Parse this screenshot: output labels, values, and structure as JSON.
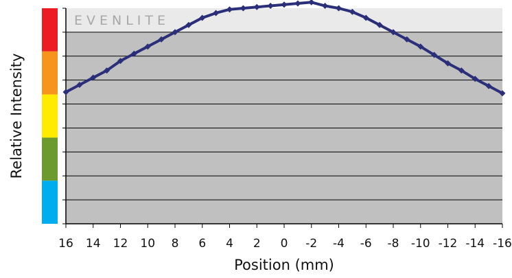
{
  "chart_data": {
    "type": "scatter",
    "title": "",
    "brand_label": "EVENLITE",
    "xlabel": "Position (mm)",
    "ylabel": "Relative Intensity",
    "x_tick_labels": [
      "16",
      "14",
      "12",
      "10",
      "8",
      "6",
      "4",
      "2",
      "0",
      "-2",
      "-4",
      "-6",
      "-8",
      "-10",
      "-12",
      "-14",
      "-16"
    ],
    "xlim": [
      16,
      -16
    ],
    "ylim": [
      0,
      9
    ],
    "y_gridlines": [
      1,
      2,
      3,
      4,
      5,
      6,
      7,
      8
    ],
    "grid": true,
    "legend": "none",
    "colors": {
      "plot_background": "#c0c0c0",
      "header_band": "#eaeaea",
      "series": "#2b2f7a",
      "gridline": "#000000",
      "scale_bar": [
        "#00aeef",
        "#6d9a2e",
        "#ffeb00",
        "#f7941d",
        "#ed1c24"
      ]
    },
    "series": [
      {
        "marker": "diamond",
        "x": [
          16,
          15,
          14,
          13,
          12,
          11,
          10,
          9,
          8,
          7,
          6,
          5,
          4,
          3,
          2,
          1,
          0,
          -1,
          -2,
          -3,
          -4,
          -5,
          -6,
          -7,
          -8,
          -9,
          -10,
          -11,
          -12,
          -13,
          -14,
          -15,
          -16
        ],
        "y": [
          5.5,
          5.8,
          6.1,
          6.4,
          6.8,
          7.1,
          7.4,
          7.7,
          8.0,
          8.3,
          8.6,
          8.8,
          8.95,
          9.0,
          9.05,
          9.1,
          9.15,
          9.2,
          9.25,
          9.1,
          9.0,
          8.85,
          8.6,
          8.3,
          8.0,
          7.7,
          7.4,
          7.05,
          6.7,
          6.4,
          6.05,
          5.75,
          5.45
        ]
      }
    ]
  }
}
